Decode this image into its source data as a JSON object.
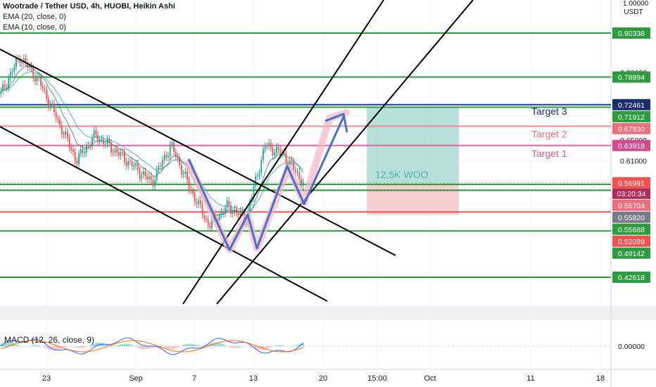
{
  "header": {
    "title": "Wootrade / Tether USD, 4h, HUOBI, Heikin Ashi",
    "indicators": [
      "EMA (20, close, 0)",
      "EMA (10, close, 0)"
    ]
  },
  "macd": {
    "label": "MACD (12, 26, close, 9)",
    "zero_label": "0.00000"
  },
  "axis": {
    "unit": "USDT",
    "top_tick": "1.00000"
  },
  "chart_data": {
    "type": "line",
    "title": "Wootrade / Tether USD, 4h, HUOBI, Heikin Ashi",
    "xlabel": "",
    "ylabel": "",
    "y_scale": "log",
    "ylim": [
      0.39,
      1.0
    ],
    "x_tick_labels": [
      "23",
      "Sep",
      "7",
      "13",
      "20",
      "15:00",
      "Oct",
      "11",
      "18"
    ],
    "y_tick_labels": [
      "1.00000",
      "0.80000",
      "0.70000",
      "0.65000",
      "0.61000"
    ],
    "price_series": [
      {
        "date": "Aug 19",
        "close": 0.75
      },
      {
        "date": "Aug 21",
        "close": 0.84
      },
      {
        "date": "Aug 23",
        "close": 0.78
      },
      {
        "date": "Aug 25",
        "close": 0.69
      },
      {
        "date": "Aug 27",
        "close": 0.61
      },
      {
        "date": "Aug 29",
        "close": 0.66
      },
      {
        "date": "Aug 31",
        "close": 0.63
      },
      {
        "date": "Sep 2",
        "close": 0.6
      },
      {
        "date": "Sep 4",
        "close": 0.57
      },
      {
        "date": "Sep 6",
        "close": 0.64
      },
      {
        "date": "Sep 8",
        "close": 0.56
      },
      {
        "date": "Sep 10",
        "close": 0.5
      },
      {
        "date": "Sep 12",
        "close": 0.53
      },
      {
        "date": "Sep 13",
        "close": 0.51
      },
      {
        "date": "Sep 15",
        "close": 0.64
      },
      {
        "date": "Sep 16",
        "close": 0.62
      },
      {
        "date": "Sep 17",
        "close": 0.57
      }
    ],
    "horizontal_levels": [
      {
        "label": "0.90338",
        "value": 0.90338,
        "color": "#2e9b3f",
        "tag_bg": "#2e9b3f"
      },
      {
        "label": "0.78894",
        "value": 0.78894,
        "color": "#2e9b3f",
        "tag_bg": "#2e9b3f"
      },
      {
        "label": "0.72461",
        "value": 0.72461,
        "color": "#1e3a8a",
        "tag_bg": "#1a2e6e"
      },
      {
        "label": "0.71912",
        "value": 0.71912,
        "color": "#2e9b3f",
        "tag_bg": "#2e9b3f"
      },
      {
        "label": "0.67830",
        "value": 0.6783,
        "color": "#ef8a96",
        "tag_bg": "#e8707f"
      },
      {
        "label": "0.63918",
        "value": 0.63918,
        "color": "#d46aa0",
        "tag_bg": "#d14c8e"
      },
      {
        "label": "0.56991",
        "value": 0.56991,
        "color": "#9aa0a6",
        "tag_bg": "#ef5350"
      },
      {
        "label": "0.56704",
        "value": 0.56704,
        "color": "#2e9b3f",
        "tag_bg": "#e8707f"
      },
      {
        "label": "0.55820",
        "value": 0.5582,
        "color": "#9aa0a6",
        "tag_bg": "#787b86"
      },
      {
        "label": "0.55688",
        "value": 0.55688,
        "color": "#2e9b3f",
        "tag_bg": "#2e9b3f"
      },
      {
        "label": "0.52089",
        "value": 0.52089,
        "color": "#ef5350",
        "tag_bg": "#ef5350"
      },
      {
        "label": "0.49142",
        "value": 0.49142,
        "color": "#2e9b3f",
        "tag_bg": "#2e9b3f"
      },
      {
        "label": "0.42618",
        "value": 0.42618,
        "color": "#2e9b3f",
        "tag_bg": "#2e9b3f"
      }
    ],
    "countdown": "03:20:34",
    "targets": [
      {
        "label": "Target 3",
        "color": "#1a2e6e"
      },
      {
        "label": "Target 2",
        "color": "#e8707f"
      },
      {
        "label": "Target 1",
        "color": "#c75a9b"
      }
    ],
    "position_label": "12,5K WOO",
    "grid": true,
    "legend_position": "top-left"
  }
}
